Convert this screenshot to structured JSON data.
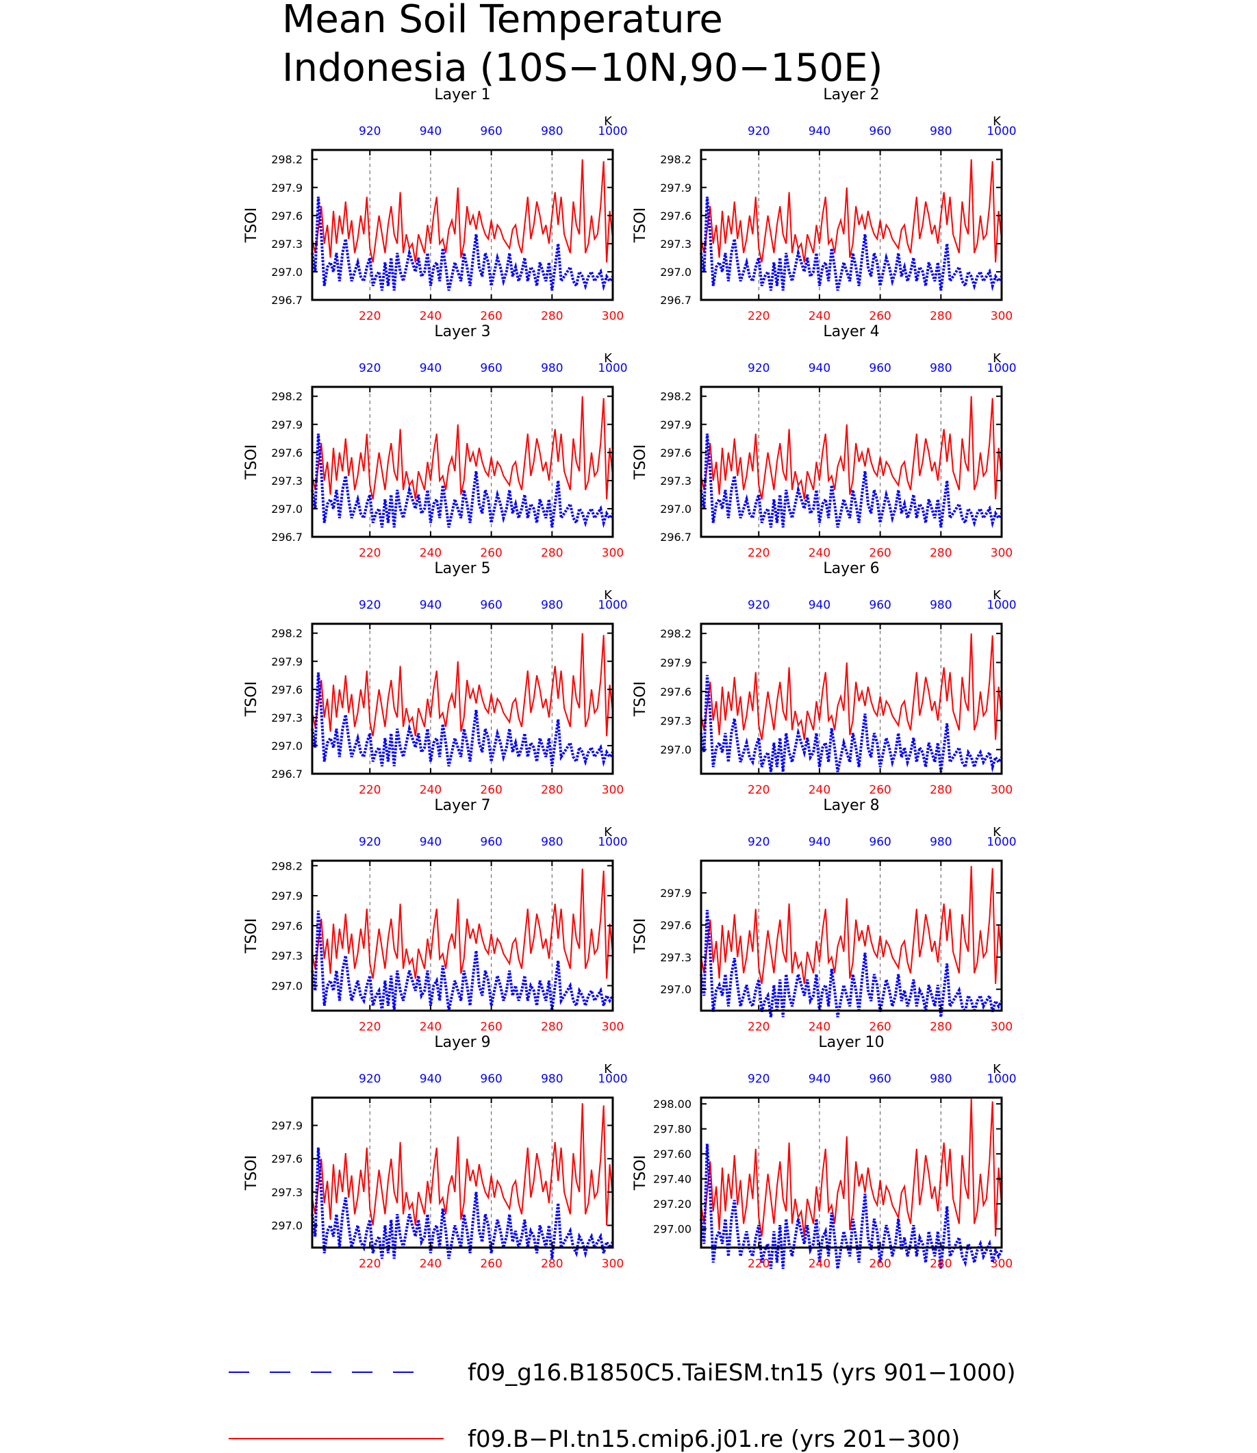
{
  "title": {
    "line1": "Mean Soil Temperature",
    "line2": "Indonesia (10S−10N,90−150E)"
  },
  "colors": {
    "series_a": "#0000ff",
    "series_b": "#ff0000",
    "axis": "#000000"
  },
  "legend": [
    {
      "label": "f09_g16.B1850C5.TaiESM.tn15 (yrs 901−1000)",
      "color": "#0000ff",
      "style": "dashed"
    },
    {
      "label": "f09.B−PI.tn15.cmip6.j01.re (yrs 201−300)",
      "color": "#ff0000",
      "style": "solid"
    }
  ],
  "chart_data": [
    {
      "type": "line",
      "title": "Layer 1",
      "ylabel": "TSOI",
      "top_unit": "K",
      "ylim": [
        296.7,
        298.3
      ],
      "yticks": [
        "296.7",
        "297.0",
        "297.3",
        "297.6",
        "297.9",
        "298.2"
      ],
      "ytick_values": [
        296.7,
        297.0,
        297.3,
        297.6,
        297.9,
        298.2
      ],
      "xlim_bottom": [
        201,
        300
      ],
      "xticks_bottom": [
        220,
        240,
        260,
        280,
        300
      ],
      "xlim_top": [
        901,
        1000
      ],
      "xticks_top": [
        920,
        940,
        960,
        980,
        1000
      ],
      "grid": "dashed vertical lines at 220, 240, 260, 280",
      "series": [
        {
          "name": "f09_g16.B1850C5.TaiESM.tn15 (yrs 901−1000)",
          "axis": "top",
          "offset": 0.0
        },
        {
          "name": "f09.B−PI.tn15.cmip6.j01.re (yrs 201−300)",
          "axis": "bottom",
          "offset": 0.0
        }
      ]
    },
    {
      "type": "line",
      "title": "Layer 2",
      "ylabel": "TSOI",
      "top_unit": "K",
      "ylim": [
        296.7,
        298.3
      ],
      "yticks": [
        "296.7",
        "297.0",
        "297.3",
        "297.6",
        "297.9",
        "298.2"
      ],
      "ytick_values": [
        296.7,
        297.0,
        297.3,
        297.6,
        297.9,
        298.2
      ],
      "xlim_bottom": [
        201,
        300
      ],
      "xticks_bottom": [
        220,
        240,
        260,
        280,
        300
      ],
      "xlim_top": [
        901,
        1000
      ],
      "xticks_top": [
        920,
        940,
        960,
        980,
        1000
      ],
      "grid": "dashed vertical lines at 220, 240, 260, 280",
      "series": [
        {
          "name": "f09_g16.B1850C5.TaiESM.tn15 (yrs 901−1000)",
          "axis": "top",
          "offset": 0.0
        },
        {
          "name": "f09.B−PI.tn15.cmip6.j01.re (yrs 201−300)",
          "axis": "bottom",
          "offset": 0.0
        }
      ]
    },
    {
      "type": "line",
      "title": "Layer 3",
      "ylabel": "TSOI",
      "top_unit": "K",
      "ylim": [
        296.7,
        298.3
      ],
      "yticks": [
        "296.7",
        "297.0",
        "297.3",
        "297.6",
        "297.9",
        "298.2"
      ],
      "ytick_values": [
        296.7,
        297.0,
        297.3,
        297.6,
        297.9,
        298.2
      ],
      "xlim_bottom": [
        201,
        300
      ],
      "xticks_bottom": [
        220,
        240,
        260,
        280,
        300
      ],
      "xlim_top": [
        901,
        1000
      ],
      "xticks_top": [
        920,
        940,
        960,
        980,
        1000
      ],
      "grid": "dashed vertical lines at 220, 240, 260, 280",
      "series": [
        {
          "name": "f09_g16.B1850C5.TaiESM.tn15 (yrs 901−1000)",
          "axis": "top",
          "offset": 0.0
        },
        {
          "name": "f09.B−PI.tn15.cmip6.j01.re (yrs 201−300)",
          "axis": "bottom",
          "offset": 0.0
        }
      ]
    },
    {
      "type": "line",
      "title": "Layer 4",
      "ylabel": "TSOI",
      "top_unit": "K",
      "ylim": [
        296.7,
        298.3
      ],
      "yticks": [
        "296.7",
        "297.0",
        "297.3",
        "297.6",
        "297.9",
        "298.2"
      ],
      "ytick_values": [
        296.7,
        297.0,
        297.3,
        297.6,
        297.9,
        298.2
      ],
      "xlim_bottom": [
        201,
        300
      ],
      "xticks_bottom": [
        220,
        240,
        260,
        280,
        300
      ],
      "xlim_top": [
        901,
        1000
      ],
      "xticks_top": [
        920,
        940,
        960,
        980,
        1000
      ],
      "grid": "dashed vertical lines at 220, 240, 260, 280",
      "series": [
        {
          "name": "f09_g16.B1850C5.TaiESM.tn15 (yrs 901−1000)",
          "axis": "top",
          "offset": 0.0
        },
        {
          "name": "f09.B−PI.tn15.cmip6.j01.re (yrs 201−300)",
          "axis": "bottom",
          "offset": 0.0
        }
      ]
    },
    {
      "type": "line",
      "title": "Layer 5",
      "ylabel": "TSOI",
      "top_unit": "K",
      "ylim": [
        296.7,
        298.3
      ],
      "yticks": [
        "296.7",
        "297.0",
        "297.3",
        "297.6",
        "297.9",
        "298.2"
      ],
      "ytick_values": [
        296.7,
        297.0,
        297.3,
        297.6,
        297.9,
        298.2
      ],
      "xlim_bottom": [
        201,
        300
      ],
      "xticks_bottom": [
        220,
        240,
        260,
        280,
        300
      ],
      "xlim_top": [
        901,
        1000
      ],
      "xticks_top": [
        920,
        940,
        960,
        980,
        1000
      ],
      "grid": "dashed vertical lines at 220, 240, 260, 280",
      "series": [
        {
          "name": "f09_g16.B1850C5.TaiESM.tn15 (yrs 901−1000)",
          "axis": "top",
          "offset": -0.02
        },
        {
          "name": "f09.B−PI.tn15.cmip6.j01.re (yrs 201−300)",
          "axis": "bottom",
          "offset": 0.0
        }
      ]
    },
    {
      "type": "line",
      "title": "Layer 6",
      "ylabel": "TSOI",
      "top_unit": "K",
      "ylim": [
        296.75,
        298.3
      ],
      "yticks": [
        "297.0",
        "297.3",
        "297.6",
        "297.9",
        "298.2"
      ],
      "ytick_values": [
        297.0,
        297.3,
        297.6,
        297.9,
        298.2
      ],
      "xlim_bottom": [
        201,
        300
      ],
      "xticks_bottom": [
        220,
        240,
        260,
        280,
        300
      ],
      "xlim_top": [
        901,
        1000
      ],
      "xticks_top": [
        920,
        940,
        960,
        980,
        1000
      ],
      "grid": "dashed vertical lines at 220, 240, 260, 280",
      "series": [
        {
          "name": "f09_g16.B1850C5.TaiESM.tn15 (yrs 901−1000)",
          "axis": "top",
          "offset": -0.03
        },
        {
          "name": "f09.B−PI.tn15.cmip6.j01.re (yrs 201−300)",
          "axis": "bottom",
          "offset": 0.0
        }
      ]
    },
    {
      "type": "line",
      "title": "Layer 7",
      "ylabel": "TSOI",
      "top_unit": "K",
      "ylim": [
        296.75,
        298.25
      ],
      "yticks": [
        "297.0",
        "297.3",
        "297.6",
        "297.9",
        "298.2"
      ],
      "ytick_values": [
        297.0,
        297.3,
        297.6,
        297.9,
        298.2
      ],
      "xlim_bottom": [
        201,
        300
      ],
      "xticks_bottom": [
        220,
        240,
        260,
        280,
        300
      ],
      "xlim_top": [
        901,
        1000
      ],
      "xticks_top": [
        920,
        940,
        960,
        980,
        1000
      ],
      "grid": "dashed vertical lines at 220, 240, 260, 280",
      "series": [
        {
          "name": "f09_g16.B1850C5.TaiESM.tn15 (yrs 901−1000)",
          "axis": "top",
          "offset": -0.05
        },
        {
          "name": "f09.B−PI.tn15.cmip6.j01.re (yrs 201−300)",
          "axis": "bottom",
          "offset": -0.03
        }
      ]
    },
    {
      "type": "line",
      "title": "Layer 8",
      "ylabel": "TSOI",
      "top_unit": "K",
      "ylim": [
        296.8,
        298.2
      ],
      "yticks": [
        "297.0",
        "297.3",
        "297.6",
        "297.9"
      ],
      "ytick_values": [
        297.0,
        297.3,
        297.6,
        297.9
      ],
      "xlim_bottom": [
        201,
        300
      ],
      "xticks_bottom": [
        220,
        240,
        260,
        280,
        300
      ],
      "xlim_top": [
        901,
        1000
      ],
      "xticks_top": [
        920,
        940,
        960,
        980,
        1000
      ],
      "grid": "dashed vertical lines at 220, 240, 260, 280",
      "series": [
        {
          "name": "f09_g16.B1850C5.TaiESM.tn15 (yrs 901−1000)",
          "axis": "top",
          "offset": -0.06
        },
        {
          "name": "f09.B−PI.tn15.cmip6.j01.re (yrs 201−300)",
          "axis": "bottom",
          "offset": -0.05
        }
      ]
    },
    {
      "type": "line",
      "title": "Layer 9",
      "ylabel": "TSOI",
      "top_unit": "K",
      "ylim": [
        296.8,
        298.15
      ],
      "yticks": [
        "297.0",
        "297.3",
        "297.6",
        "297.9"
      ],
      "ytick_values": [
        297.0,
        297.3,
        297.6,
        297.9
      ],
      "xlim_bottom": [
        201,
        300
      ],
      "xticks_bottom": [
        220,
        240,
        260,
        280,
        300
      ],
      "xlim_top": [
        901,
        1000
      ],
      "xticks_top": [
        920,
        940,
        960,
        980,
        1000
      ],
      "grid": "dashed vertical lines at 220, 240, 260, 280",
      "series": [
        {
          "name": "f09_g16.B1850C5.TaiESM.tn15 (yrs 901−1000)",
          "axis": "top",
          "offset": -0.1
        },
        {
          "name": "f09.B−PI.tn15.cmip6.j01.re (yrs 201−300)",
          "axis": "bottom",
          "offset": -0.1
        }
      ]
    },
    {
      "type": "line",
      "title": "Layer 10",
      "ylabel": "TSOI",
      "top_unit": "K",
      "ylim": [
        296.85,
        298.05
      ],
      "yticks": [
        "297.00",
        "297.20",
        "297.40",
        "297.60",
        "297.80",
        "298.00"
      ],
      "ytick_values": [
        297.0,
        297.2,
        297.4,
        297.6,
        297.8,
        298.0
      ],
      "xlim_bottom": [
        201,
        300
      ],
      "xticks_bottom": [
        220,
        240,
        260,
        280,
        300
      ],
      "xlim_top": [
        901,
        1000
      ],
      "xticks_top": [
        920,
        940,
        960,
        980,
        1000
      ],
      "grid": "dashed vertical lines at 220, 240, 260, 280",
      "series": [
        {
          "name": "f09_g16.B1850C5.TaiESM.tn15 (yrs 901−1000)",
          "axis": "top",
          "offset": -0.12
        },
        {
          "name": "f09.B−PI.tn15.cmip6.j01.re (yrs 201−300)",
          "axis": "bottom",
          "offset": -0.16
        }
      ]
    }
  ],
  "base_series": {
    "red": [
      297.35,
      297.2,
      297.45,
      297.7,
      297.3,
      297.5,
      297.15,
      297.65,
      297.3,
      297.6,
      297.4,
      297.75,
      297.35,
      297.55,
      297.2,
      297.35,
      297.6,
      297.4,
      297.8,
      297.25,
      297.1,
      297.35,
      297.6,
      297.4,
      297.2,
      297.5,
      297.7,
      297.4,
      297.3,
      297.85,
      297.2,
      297.4,
      297.25,
      297.3,
      297.1,
      297.4,
      297.3,
      297.2,
      297.5,
      297.3,
      297.6,
      297.8,
      297.3,
      297.35,
      297.2,
      297.45,
      297.55,
      297.4,
      297.9,
      297.15,
      297.3,
      297.7,
      297.5,
      297.6,
      297.45,
      297.65,
      297.5,
      297.4,
      297.35,
      297.55,
      297.35,
      297.5,
      297.45,
      297.35,
      297.3,
      297.25,
      297.45,
      297.5,
      297.3,
      297.2,
      297.5,
      297.8,
      297.35,
      297.5,
      297.75,
      297.6,
      297.4,
      297.5,
      297.3,
      297.6,
      297.85,
      297.5,
      297.8,
      297.4,
      297.3,
      297.2,
      297.75,
      297.5,
      297.4,
      298.2,
      297.2,
      297.3,
      297.6,
      297.35,
      297.4,
      297.7,
      298.18,
      297.1,
      297.65,
      297.35
    ],
    "blue": [
      297.2,
      297.0,
      297.8,
      297.4,
      296.85,
      297.05,
      297.1,
      297.0,
      297.2,
      296.9,
      297.2,
      297.35,
      297.1,
      296.9,
      297.0,
      297.1,
      296.95,
      296.9,
      297.05,
      297.15,
      296.85,
      296.95,
      297.0,
      296.8,
      297.1,
      296.85,
      297.15,
      296.8,
      297.2,
      297.0,
      296.9,
      297.05,
      297.2,
      297.1,
      297.0,
      297.15,
      296.95,
      297.0,
      297.2,
      296.85,
      297.05,
      297.1,
      296.9,
      297.25,
      297.05,
      296.8,
      296.95,
      297.1,
      297.0,
      296.9,
      297.2,
      297.05,
      296.85,
      297.15,
      297.4,
      297.05,
      296.95,
      297.2,
      297.1,
      296.85,
      297.0,
      297.15,
      297.05,
      296.9,
      297.0,
      297.2,
      296.95,
      297.05,
      296.9,
      297.0,
      297.15,
      296.9,
      297.05,
      297.0,
      296.85,
      297.1,
      297.0,
      296.9,
      297.1,
      296.8,
      297.05,
      297.3,
      296.9,
      296.95,
      297.0,
      297.05,
      296.9,
      296.85,
      297.0,
      296.95,
      296.85,
      296.95,
      297.0,
      296.9,
      296.95,
      297.0,
      296.85,
      296.95,
      296.9,
      296.95
    ]
  }
}
